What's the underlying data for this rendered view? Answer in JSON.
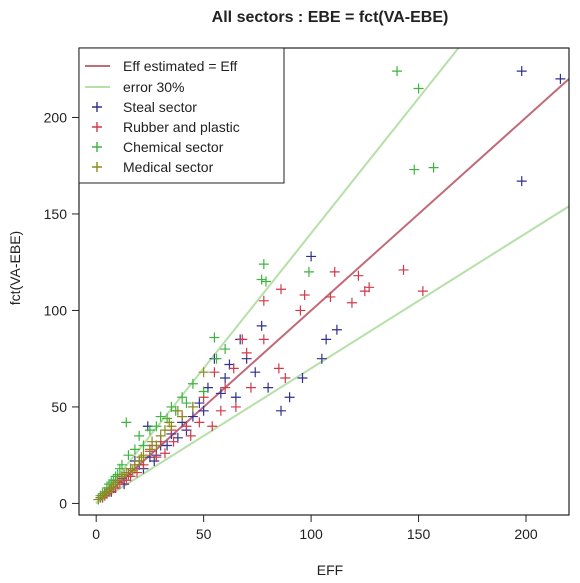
{
  "chart_data": {
    "type": "scatter",
    "title": "All sectors : EBE =  fct(VA-EBE)",
    "xlabel": "EFF",
    "ylabel": "fct(VA-EBE)",
    "xlim": [
      -8,
      220
    ],
    "ylim": [
      -6,
      236
    ],
    "xticks": [
      0,
      50,
      100,
      150,
      200
    ],
    "yticks": [
      0,
      50,
      100,
      150,
      200
    ],
    "grid": false,
    "legend_position": "top-left",
    "reference_lines": [
      {
        "name": "Eff estimated = Eff",
        "color": "#c06a7a",
        "slope": 1.0
      },
      {
        "name": "error 30%",
        "color": "#b6e0a8",
        "slopes": [
          1.4,
          0.7
        ]
      }
    ],
    "series": [
      {
        "name": "Steal sector",
        "color": "#30308f",
        "marker": "+",
        "points": [
          [
            216,
            220
          ],
          [
            198,
            224
          ],
          [
            198,
            167
          ],
          [
            100,
            128
          ],
          [
            86,
            48
          ],
          [
            112,
            90
          ],
          [
            107,
            85
          ],
          [
            105,
            75
          ],
          [
            96,
            65
          ],
          [
            77,
            92
          ],
          [
            67,
            85
          ],
          [
            70,
            75
          ],
          [
            60,
            65
          ],
          [
            58,
            57
          ],
          [
            50,
            48
          ],
          [
            45,
            45
          ],
          [
            40,
            42
          ],
          [
            35,
            36
          ],
          [
            30,
            30
          ],
          [
            28,
            25
          ],
          [
            25,
            24
          ],
          [
            20,
            20
          ],
          [
            18,
            22
          ],
          [
            15,
            15
          ],
          [
            12,
            13
          ],
          [
            10,
            11
          ],
          [
            8,
            9
          ],
          [
            6,
            7
          ],
          [
            5,
            6
          ],
          [
            3,
            4
          ],
          [
            2,
            3
          ],
          [
            55,
            75
          ],
          [
            65,
            55
          ],
          [
            80,
            60
          ],
          [
            90,
            55
          ],
          [
            42,
            38
          ],
          [
            38,
            34
          ],
          [
            33,
            30
          ],
          [
            27,
            22
          ],
          [
            22,
            18
          ],
          [
            16,
            18
          ],
          [
            13,
            10
          ],
          [
            9,
            12
          ],
          [
            7,
            6
          ],
          [
            4,
            5
          ],
          [
            62,
            72
          ],
          [
            48,
            52
          ],
          [
            52,
            60
          ],
          [
            74,
            68
          ],
          [
            24,
            40
          ]
        ]
      },
      {
        "name": "Rubber and plastic",
        "color": "#cf3a4a",
        "marker": "+",
        "points": [
          [
            152,
            110
          ],
          [
            143,
            121
          ],
          [
            125,
            110
          ],
          [
            127,
            112
          ],
          [
            119,
            104
          ],
          [
            122,
            118
          ],
          [
            111,
            120
          ],
          [
            109,
            107
          ],
          [
            97,
            108
          ],
          [
            86,
            111
          ],
          [
            78,
            85
          ],
          [
            78,
            105
          ],
          [
            68,
            85
          ],
          [
            70,
            78
          ],
          [
            64,
            70
          ],
          [
            55,
            68
          ],
          [
            50,
            55
          ],
          [
            45,
            50
          ],
          [
            40,
            45
          ],
          [
            35,
            38
          ],
          [
            30,
            32
          ],
          [
            25,
            27
          ],
          [
            20,
            22
          ],
          [
            18,
            18
          ],
          [
            15,
            15
          ],
          [
            12,
            12
          ],
          [
            10,
            10
          ],
          [
            8,
            8
          ],
          [
            6,
            6
          ],
          [
            5,
            5
          ],
          [
            4,
            4
          ],
          [
            3,
            3
          ],
          [
            85,
            70
          ],
          [
            95,
            100
          ],
          [
            60,
            60
          ],
          [
            58,
            48
          ],
          [
            48,
            42
          ],
          [
            42,
            40
          ],
          [
            36,
            32
          ],
          [
            28,
            24
          ],
          [
            22,
            20
          ],
          [
            16,
            14
          ],
          [
            14,
            12
          ],
          [
            11,
            11
          ],
          [
            9,
            8
          ],
          [
            7,
            7
          ],
          [
            88,
            65
          ],
          [
            72,
            60
          ],
          [
            65,
            50
          ],
          [
            54,
            40
          ],
          [
            44,
            35
          ],
          [
            32,
            26
          ],
          [
            26,
            30
          ],
          [
            19,
            16
          ]
        ]
      },
      {
        "name": "Chemical sector",
        "color": "#3fb33f",
        "marker": "+",
        "points": [
          [
            140,
            224
          ],
          [
            150,
            215
          ],
          [
            148,
            173
          ],
          [
            157,
            174
          ],
          [
            99,
            120
          ],
          [
            78,
            124
          ],
          [
            77,
            116
          ],
          [
            79,
            115
          ],
          [
            55,
            86
          ],
          [
            56,
            75
          ],
          [
            45,
            62
          ],
          [
            50,
            58
          ],
          [
            35,
            50
          ],
          [
            30,
            45
          ],
          [
            28,
            40
          ],
          [
            25,
            38
          ],
          [
            20,
            35
          ],
          [
            15,
            25
          ],
          [
            14,
            42
          ],
          [
            12,
            20
          ],
          [
            10,
            15
          ],
          [
            8,
            12
          ],
          [
            6,
            10
          ],
          [
            5,
            8
          ],
          [
            4,
            6
          ],
          [
            3,
            5
          ],
          [
            2,
            4
          ],
          [
            40,
            55
          ],
          [
            37,
            48
          ],
          [
            33,
            44
          ],
          [
            22,
            30
          ],
          [
            18,
            28
          ],
          [
            11,
            18
          ],
          [
            9,
            14
          ],
          [
            7,
            11
          ],
          [
            60,
            80
          ],
          [
            42,
            52
          ]
        ]
      },
      {
        "name": "Medical sector",
        "color": "#8a8a20",
        "marker": "+",
        "points": [
          [
            50,
            68
          ],
          [
            45,
            50
          ],
          [
            40,
            45
          ],
          [
            38,
            48
          ],
          [
            35,
            40
          ],
          [
            32,
            38
          ],
          [
            30,
            35
          ],
          [
            28,
            30
          ],
          [
            25,
            28
          ],
          [
            22,
            25
          ],
          [
            20,
            22
          ],
          [
            18,
            20
          ],
          [
            16,
            18
          ],
          [
            14,
            16
          ],
          [
            12,
            14
          ],
          [
            10,
            12
          ],
          [
            9,
            10
          ],
          [
            8,
            9
          ],
          [
            7,
            8
          ],
          [
            6,
            7
          ],
          [
            5,
            6
          ],
          [
            4,
            5
          ],
          [
            3,
            4
          ],
          [
            2,
            3
          ],
          [
            1,
            2
          ],
          [
            34,
            42
          ],
          [
            26,
            32
          ],
          [
            21,
            24
          ],
          [
            17,
            17
          ],
          [
            13,
            15
          ]
        ]
      }
    ]
  }
}
